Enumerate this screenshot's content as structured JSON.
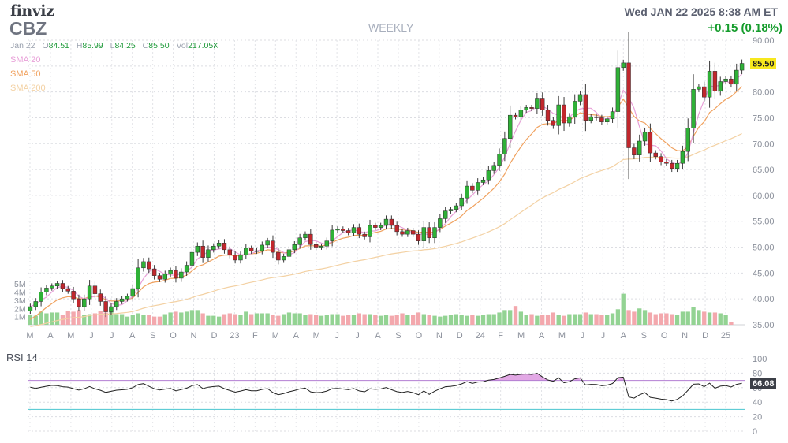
{
  "header": {
    "logo": "finviz",
    "ticker": "CBZ",
    "timeframe": "WEEKLY",
    "datetime": "Wed JAN 22 2025 8:38 AM ET",
    "change": "+0.15 (0.18%)"
  },
  "ohlc": {
    "date": "Jan 22",
    "open_label": "O",
    "open": "84.51",
    "high_label": "H",
    "high": "85.99",
    "low_label": "L",
    "low": "84.25",
    "close_label": "C",
    "close": "85.50",
    "vol_label": "Vol",
    "volume": "217.05K"
  },
  "indicators": {
    "sma20": "SMA 20",
    "sma50": "SMA 50",
    "sma200": "SMA 200"
  },
  "rsi": {
    "label": "RSI 14",
    "value_label": "66.08"
  },
  "colors": {
    "up": "#2fb137",
    "down": "#c1272d",
    "vol_up": "#93d393",
    "vol_down": "#f3a8ad",
    "sma20": "#e8a0d8",
    "sma50": "#f0a15e",
    "sma200": "#f3d1a3",
    "rsi_line": "#222222",
    "rsi_70": "#b27ed2",
    "rsi_30": "#48c4cf",
    "rsi_fill": "#dd99e0",
    "price_tag": "#f7e81e"
  },
  "chart_data": [
    {
      "type": "candlestick",
      "title": "CBZ",
      "ylim": [
        35,
        90
      ],
      "y_ticks": [
        "90.00",
        "85.00",
        "80.00",
        "75.00",
        "70.00",
        "65.00",
        "60.00",
        "55.00",
        "50.00",
        "45.00",
        "40.00",
        "35.00"
      ],
      "current_price_label": "85.50",
      "x_ticks": [
        "M",
        "A",
        "M",
        "J",
        "J",
        "A",
        "S",
        "O",
        "N",
        "D",
        "23",
        "F",
        "M",
        "A",
        "M",
        "J",
        "J",
        "A",
        "S",
        "O",
        "N",
        "D",
        "24",
        "F",
        "M",
        "A",
        "M",
        "J",
        "J",
        "A",
        "S",
        "O",
        "N",
        "D",
        "25"
      ],
      "volume_ticks": [
        "5M",
        "4M",
        "3M",
        "2M",
        "1M"
      ],
      "volume_max_millions": 5.5,
      "close": [
        38.5,
        39.5,
        41.3,
        42.1,
        42.5,
        43,
        42,
        41.5,
        40,
        38.5,
        40,
        42.5,
        41,
        39.5,
        37.5,
        38.5,
        39.5,
        40,
        40.5,
        42,
        46,
        47.2,
        45.8,
        44.5,
        43.8,
        44.8,
        45.5,
        44,
        45.2,
        46.5,
        49,
        50.2,
        48,
        49.5,
        50.2,
        50.8,
        49.5,
        48.5,
        47.5,
        48.5,
        49.8,
        49.2,
        49.3,
        50.4,
        51.2,
        49,
        47.5,
        48.2,
        49.5,
        50.5,
        51.8,
        52.5,
        50.5,
        50,
        50.2,
        51.2,
        53.3,
        53.5,
        53.2,
        52.8,
        53.8,
        52.5,
        52,
        54.2,
        53.8,
        54.2,
        55.4,
        54.2,
        53,
        52.5,
        53.2,
        52.5,
        51.2,
        53.8,
        51.8,
        53.8,
        55.5,
        57,
        57.3,
        58,
        59.5,
        61.8,
        61,
        62.5,
        63,
        64.8,
        65.8,
        68,
        71,
        75.5,
        75.2,
        76.5,
        77,
        76.8,
        78.8,
        76.5,
        74.5,
        73.5,
        77.5,
        74,
        75.2,
        78.2,
        79.5,
        74.5,
        75.2,
        75,
        74.2,
        74.8,
        76.2,
        84.7,
        85.6,
        69.2,
        67.8,
        70.5,
        72.2,
        68.2,
        67.5,
        66.5,
        66.2,
        65.2,
        66.2,
        68.5,
        73,
        80.5,
        81,
        79,
        84,
        80.2,
        82,
        82.5,
        81.5,
        84.2,
        85.5
      ],
      "volume_millions": [
        1.2,
        1.1,
        1.6,
        1.4,
        1.5,
        1.5,
        1.2,
        1.7,
        1.6,
        1.8,
        1.2,
        1.3,
        1.4,
        1.7,
        1.5,
        1.6,
        1.3,
        1.3,
        1.0,
        1.2,
        1.4,
        1.2,
        1.2,
        1.0,
        1.0,
        1.3,
        1.5,
        1.6,
        1.5,
        1.6,
        1.8,
        1.8,
        1.4,
        1.1,
        1.1,
        1.0,
        1.3,
        1.4,
        1.3,
        1.2,
        1.6,
        1.3,
        1.4,
        1.4,
        1.4,
        1.2,
        1.1,
        1.3,
        1.5,
        1.4,
        1.4,
        1.2,
        1.3,
        1.2,
        1.1,
        1.2,
        1.3,
        1.3,
        1.1,
        1.2,
        1.2,
        1.4,
        1.3,
        1.3,
        1.2,
        1.1,
        1.2,
        1.1,
        1.2,
        1.4,
        1.2,
        1.2,
        1.5,
        1.3,
        1.2,
        1.1,
        1.0,
        1.1,
        1.2,
        1.3,
        1.2,
        1.1,
        1.2,
        1.1,
        1.2,
        1.3,
        1.3,
        1.5,
        1.8,
        1.8,
        2.3,
        1.6,
        1.2,
        1.3,
        1.1,
        1.2,
        1.2,
        1.5,
        1.2,
        1.1,
        1.3,
        1.3,
        1.3,
        1.5,
        1.3,
        1.3,
        1.2,
        1.2,
        1.4,
        1.9,
        3.8,
        1.8,
        1.6,
        2.0,
        1.8,
        1.5,
        1.3,
        1.4,
        1.4,
        1.3,
        1.2,
        1.6,
        1.6,
        2.2,
        1.8,
        1.6,
        1.5,
        1.5,
        1.4,
        1.2,
        0.3
      ]
    },
    {
      "type": "line",
      "title": "RSI 14",
      "ylim": [
        0,
        100
      ],
      "y_ticks": [
        "100",
        "80",
        "60",
        "40",
        "20",
        "0"
      ],
      "levels": [
        70,
        30
      ],
      "current_value": 66.08,
      "values": [
        60.5,
        59,
        60.5,
        62,
        63.2,
        62.8,
        61.3,
        60.8,
        58.6,
        56.6,
        58.5,
        61.5,
        58.4,
        56.4,
        53.5,
        55,
        56.5,
        57.1,
        57.7,
        60,
        64.3,
        65.5,
        61.8,
        58.5,
        56.8,
        58,
        58.9,
        55.6,
        57.4,
        59.2,
        62.7,
        64.2,
        58.7,
        60.6,
        61.5,
        62.1,
        58.6,
        56.1,
        53.8,
        55.3,
        57.2,
        55.7,
        55.8,
        57.6,
        58.7,
        53.3,
        50.3,
        51.8,
        54.3,
        56.1,
        58.3,
        59.4,
        54.2,
        53.2,
        53.6,
        55.3,
        58.6,
        58.9,
        58.2,
        57.2,
        58.8,
        55.5,
        54.4,
        58.5,
        57.7,
        58.3,
        60.2,
        57.2,
        54.5,
        53.4,
        54.8,
        53.1,
        50.3,
        55.4,
        50.8,
        55.1,
        58.5,
        61.3,
        61.8,
        62.9,
        65.2,
        68.3,
        65.9,
        67.8,
        68.3,
        70.3,
        71.3,
        73.4,
        75.7,
        78.3,
        77.3,
        78.4,
        78.8,
        78.2,
        79.8,
        74.8,
        70.7,
        68.8,
        73.7,
        66.7,
        68.4,
        72.2,
        73.6,
        63.7,
        64.6,
        64.3,
        62.6,
        63.5,
        65.8,
        73.8,
        74.6,
        47.2,
        45.5,
        50.1,
        53.1,
        46.6,
        45.5,
        44.1,
        43.5,
        41.6,
        43.8,
        48.6,
        56.4,
        64.8,
        65.2,
        61.3,
        66.2,
        59.2,
        62.1,
        62.9,
        60.9,
        64.6,
        66.08
      ]
    }
  ]
}
